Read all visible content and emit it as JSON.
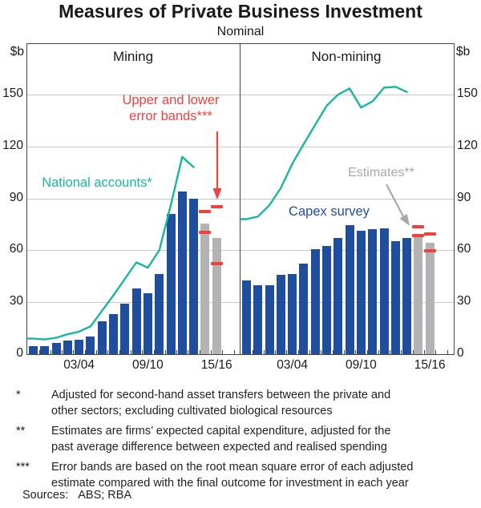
{
  "title": "Measures of Private Business Investment",
  "subtitle": "Nominal",
  "unit": "$b",
  "annotations": {
    "error_bands_line1": "Upper and lower",
    "error_bands_line2": "error bands***",
    "national_accounts": "National accounts*",
    "capex_survey": "Capex survey",
    "estimates": "Estimates**"
  },
  "colors": {
    "national_accounts_line": "#18b5a3",
    "capex_survey_bar": "#1f4e9e",
    "estimate_bar": "#b3b3b6",
    "error_band": "#f0413f",
    "annotation_gray": "#a8a8ac",
    "gridline": "#c9c9c9",
    "axis": "#444444"
  },
  "chart_data": {
    "type": "bar",
    "title": "Measures of Private Business Investment",
    "subtitle": "Nominal",
    "ylabel": "$b",
    "ylim": [
      0,
      179
    ],
    "y_ticks": [
      0,
      30,
      60,
      90,
      120,
      150
    ],
    "grid": "horizontal",
    "x_tick_labels": [
      "03/04",
      "09/10",
      "15/16"
    ],
    "x_labeled_bar_indexes": [
      4,
      10,
      16
    ],
    "panels": [
      {
        "label": "Mining",
        "capex_survey_bars": [
          4.5,
          4.5,
          6.5,
          8,
          8.5,
          10,
          19,
          23,
          29,
          38,
          35,
          46.5,
          81,
          94,
          90
        ],
        "estimate_bars": [
          75.5,
          67
        ],
        "error_bands": [
          {
            "low": 70.5,
            "high": 82.5
          },
          {
            "low": 52.5,
            "high": 85
          }
        ],
        "national_accounts_line": [
          9,
          8.5,
          9.5,
          11.5,
          13,
          16,
          25,
          34,
          43.5,
          53,
          50,
          60,
          86,
          114,
          108
        ]
      },
      {
        "label": "Non-mining",
        "capex_survey_bars": [
          42.5,
          40,
          40,
          46,
          46.5,
          52.5,
          60.5,
          62.5,
          67,
          74.5,
          71.5,
          72,
          72.5,
          65.5,
          67
        ],
        "estimate_bars": [
          69.5,
          64.5
        ],
        "error_bands": [
          {
            "low": 68.5,
            "high": 73.5
          },
          {
            "low": 59.5,
            "high": 69.5
          }
        ],
        "national_accounts_line": [
          78,
          79.5,
          86,
          96,
          110,
          121.5,
          132.5,
          143.5,
          150,
          153.5,
          142.5,
          146,
          154,
          154.5,
          151.5
        ]
      }
    ]
  },
  "footnotes": [
    {
      "marker": "*",
      "lines": [
        "Adjusted for second-hand asset transfers between the private and",
        "other sectors; excluding cultivated biological resources"
      ]
    },
    {
      "marker": "**",
      "lines": [
        "Estimates are firms’ expected capital expenditure, adjusted for the",
        "past average difference between expected and realised spending"
      ]
    },
    {
      "marker": "***",
      "lines": [
        "Error bands are based on the root mean square error of each adjusted",
        "estimate compared with the final outcome for investment in each year"
      ]
    }
  ],
  "sources": {
    "label": "Sources:",
    "value": "ABS; RBA"
  }
}
